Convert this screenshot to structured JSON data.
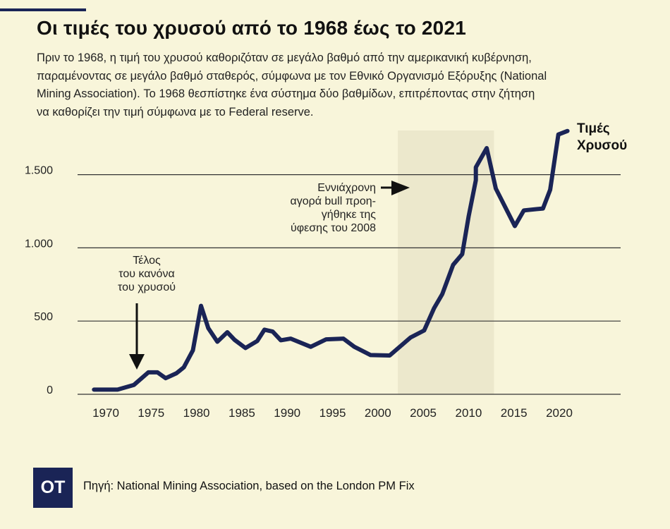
{
  "header": {
    "title": "Οι τιμές του χρυσού από το 1968 έως το 2021",
    "description_lines": [
      "Πριν το 1968, η τιμή του χρυσού καθοριζόταν σε μεγάλο βαθμό από την αμερικανική κυβέρνηση,",
      "παραμένοντας σε μεγάλο βαθμό σταθερός, σύμφωνα με τον Εθνικό Οργανισμό Εξόρυξης  (National",
      "Mining Association). Το 1968 θεσπίστηκε ένα σύστημα δύο βαθμίδων, επιτρέποντας στην ζήτηση",
      "να καθορίζει την τιμή σύμφωνα με το Federal reserve."
    ]
  },
  "chart_data": {
    "type": "line",
    "title": "Οι τιμές του χρυσού από το 1968 έως το 2021",
    "xlabel": "",
    "ylabel": "",
    "xlim": [
      1968,
      2024
    ],
    "ylim": [
      0,
      1800
    ],
    "grid": true,
    "yticks": [
      0,
      500,
      1000,
      1500
    ],
    "ytick_labels": [
      "0",
      "500",
      "1.000",
      "1.500"
    ],
    "xticks": [
      1970,
      1975,
      1980,
      1985,
      1990,
      1995,
      2000,
      2005,
      2010,
      2015,
      2020
    ],
    "xtick_labels": [
      "1970",
      "1975",
      "1980",
      "1985",
      "1990",
      "1995",
      "2000",
      "2005",
      "2010",
      "2015",
      "2020"
    ],
    "series": [
      {
        "name": "Τιμές Χρυσού",
        "color": "#1a2456",
        "x": [
          1968.7,
          1971.3,
          1973.1,
          1974.7,
          1975.7,
          1976.6,
          1977.8,
          1978.6,
          1979.6,
          1980.5,
          1981.3,
          1982.3,
          1983.4,
          1984.2,
          1985.4,
          1986.7,
          1987.5,
          1988.4,
          1989.3,
          1990.4,
          1992.6,
          1994.3,
          1996.2,
          1997.4,
          1999.2,
          2001.3,
          2003.6,
          2005.1,
          2006.2,
          2007.1,
          2008.3,
          2009.3,
          2010.0,
          2010.8,
          2010.8,
          2012.0,
          2013.0,
          2015.1,
          2016.1,
          2018.2,
          2019.0,
          2019.9,
          2020.9
        ],
        "values": [
          32,
          32,
          64,
          150,
          150,
          110,
          144,
          184,
          300,
          604,
          452,
          359,
          424,
          372,
          316,
          364,
          441,
          428,
          369,
          380,
          324,
          375,
          380,
          324,
          268,
          265,
          388,
          436,
          588,
          684,
          884,
          957,
          1213,
          1462,
          1550,
          1681,
          1405,
          1149,
          1256,
          1269,
          1397,
          1774,
          1798
        ]
      }
    ],
    "shaded_region": {
      "x": [
        2002.2,
        2012.8
      ],
      "color": "#ece8cc"
    },
    "series_label": [
      "Τιμές",
      "Χρυσού"
    ],
    "annotations": [
      {
        "lines": [
          "Τέλος",
          "του κανόνα",
          "του χρυσού"
        ],
        "arrow": "down"
      },
      {
        "lines": [
          "Εννιάχρονη",
          "αγορά bull προη-",
          "γήθηκε της",
          "ύφεσης του 2008"
        ],
        "arrow": "right"
      }
    ]
  },
  "footer": {
    "logo": "OT",
    "source": "Πηγή: National Mining Association, based on the London PM Fix"
  }
}
